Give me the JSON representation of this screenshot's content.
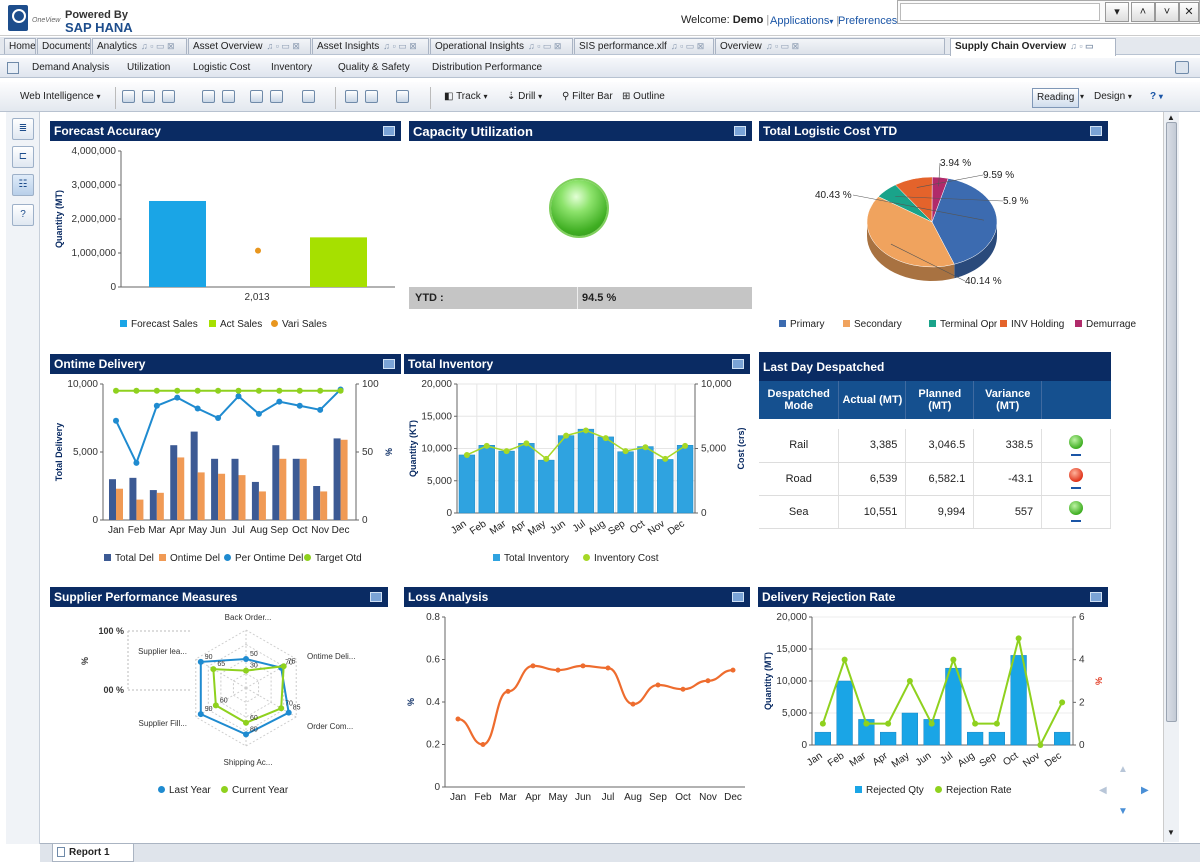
{
  "branding": {
    "powered": "Powered By",
    "product": "SAP HANA",
    "oneview": "OneView"
  },
  "header": {
    "welcome_prefix": "Welcome:",
    "user": "Demo",
    "applications": "Applications",
    "preferences": "Preferences"
  },
  "tabs": [
    {
      "label": "Home"
    },
    {
      "label": "Documents"
    },
    {
      "label": "Analytics"
    },
    {
      "label": "Asset Overview"
    },
    {
      "label": "Asset Insights"
    },
    {
      "label": "Operational Insights"
    },
    {
      "label": "SIS performance.xlf"
    },
    {
      "label": "Overview"
    },
    {
      "label": "Supply Chain Overview"
    }
  ],
  "subtabs": [
    "Demand Analysis",
    "Utilization",
    "Logistic Cost",
    "Inventory",
    "Quality & Safety",
    "Distribution Performance"
  ],
  "toolbar": {
    "web_intelligence": "Web Intelligence",
    "track": "Track",
    "drill": "Drill",
    "filter_bar": "Filter Bar",
    "outline": "Outline",
    "reading": "Reading",
    "design": "Design",
    "help": "?"
  },
  "report_tab": "Report 1",
  "panels": {
    "forecast": "Forecast Accuracy",
    "capacity": "Capacity Utilization",
    "logistic": "Total Logistic Cost YTD",
    "ontime": "Ontime Delivery",
    "inventory": "Total Inventory",
    "despatched": "Last Day Despatched",
    "supplier": "Supplier Performance Measures",
    "loss": "Loss Analysis",
    "rejection": "Delivery Rejection Rate"
  },
  "capacity": {
    "ytd_label": "YTD :",
    "ytd_value": "94.5 %",
    "status_color": "#4fc12b"
  },
  "despatched": {
    "headers": [
      "Despatched Mode",
      "Actual (MT)",
      "Planned (MT)",
      "Variance (MT)"
    ],
    "rows": [
      {
        "mode": "Rail",
        "actual": "3,385",
        "planned": "3,046.5",
        "variance": "338.5",
        "status": "green"
      },
      {
        "mode": "Road",
        "actual": "6,539",
        "planned": "6,582.1",
        "variance": "-43.1",
        "status": "red"
      },
      {
        "mode": "Sea",
        "actual": "10,551",
        "planned": "9,994",
        "variance": "557",
        "status": "green"
      }
    ]
  },
  "chart_data": [
    {
      "id": "forecast",
      "type": "bar",
      "title": "Forecast Accuracy",
      "ylabel": "Quantity (MT)",
      "categories": [
        "2,013"
      ],
      "ylim": [
        0,
        4000000
      ],
      "yticks": [
        "4,000,000",
        "3,000,000",
        "2,000,000",
        "1,000,000",
        "0"
      ],
      "series": [
        {
          "name": "Forecast Sales",
          "values": [
            2530000
          ],
          "color": "#1aa5e6"
        },
        {
          "name": "Act Sales",
          "values": [
            1460000
          ],
          "color": "#a6e000"
        },
        {
          "name": "Vari Sales",
          "values": [
            1070000
          ],
          "color": "#e8961e"
        }
      ]
    },
    {
      "id": "logistic",
      "type": "pie",
      "title": "Total Logistic Cost YTD",
      "slices": [
        {
          "name": "Primary",
          "value": 40.43,
          "label": "40.43 %",
          "color": "#3c6bb0"
        },
        {
          "name": "Secondary",
          "value": 40.14,
          "label": "40.14 %",
          "color": "#f0a35e"
        },
        {
          "name": "Terminal Opr",
          "value": 5.9,
          "label": "5.9 %",
          "color": "#1aa38a"
        },
        {
          "name": "INV Holding",
          "value": 9.59,
          "label": "9.59 %",
          "color": "#e4632b"
        },
        {
          "name": "Demurrage",
          "value": 3.94,
          "label": "3.94 %",
          "color": "#b02a6a"
        }
      ]
    },
    {
      "id": "ontime",
      "type": "bar",
      "title": "Ontime Delivery",
      "ylabel": "Total Delivery",
      "y2label": "%",
      "categories": [
        "Jan",
        "Feb",
        "Mar",
        "Apr",
        "May",
        "Jun",
        "Jul",
        "Aug",
        "Sep",
        "Oct",
        "Nov",
        "Dec"
      ],
      "ylim": [
        0,
        10000
      ],
      "y2lim": [
        0,
        100
      ],
      "yticks": [
        "10,000",
        "5,000",
        "0"
      ],
      "y2ticks": [
        "100",
        "50",
        "0"
      ],
      "series": [
        {
          "name": "Total Del",
          "values": [
            3000,
            3100,
            2200,
            5500,
            6500,
            4500,
            4500,
            2800,
            5500,
            4500,
            2500,
            6000
          ],
          "color": "#3c5a94"
        },
        {
          "name": "Ontime Del",
          "values": [
            2300,
            1500,
            2000,
            4600,
            3500,
            3400,
            3300,
            2100,
            4500,
            4500,
            2100,
            5900
          ],
          "color": "#f09a55"
        },
        {
          "name": "Per Ontime Del",
          "values": [
            73,
            42,
            84,
            90,
            82,
            75,
            91,
            78,
            87,
            84,
            81,
            96
          ],
          "color": "#1f8bd0"
        },
        {
          "name": "Target Otd",
          "values": [
            95,
            95,
            95,
            95,
            95,
            95,
            95,
            95,
            95,
            95,
            95,
            95
          ],
          "color": "#8fd11e"
        }
      ]
    },
    {
      "id": "inventory",
      "type": "bar",
      "title": "Total Inventory",
      "ylabel": "Quantity (KT)",
      "y2label": "Cost (crs)",
      "categories": [
        "Jan",
        "Feb",
        "Mar",
        "Apr",
        "May",
        "Jun",
        "Jul",
        "Aug",
        "Sep",
        "Oct",
        "Nov",
        "Dec"
      ],
      "ylim": [
        0,
        20000
      ],
      "y2lim": [
        0,
        10000
      ],
      "yticks": [
        "20,000",
        "15,000",
        "10,000",
        "5,000",
        "0"
      ],
      "y2ticks": [
        "10,000",
        "5,000",
        "0"
      ],
      "series": [
        {
          "name": "Total Inventory",
          "values": [
            9000,
            10500,
            9600,
            10800,
            8200,
            12000,
            13000,
            11800,
            9500,
            10300,
            8300,
            10500
          ],
          "color": "#2fa3e0"
        },
        {
          "name": "Inventory Cost",
          "values": [
            4500,
            5200,
            4800,
            5400,
            4200,
            6000,
            6400,
            5800,
            4800,
            5100,
            4200,
            5200
          ],
          "color": "#a6d826"
        }
      ]
    },
    {
      "id": "supplier",
      "type": "radar",
      "title": "Supplier Performance Measures",
      "ylabel": "%",
      "axes": [
        "Back Order...",
        "Ontime Deli...",
        "Order Com...",
        "Shipping Ac...",
        "Supplier Fill...",
        "Supplier lea..."
      ],
      "scale_labels": [
        "100 %",
        "00 %"
      ],
      "series": [
        {
          "name": "Last Year",
          "values": [
            50,
            70,
            85,
            80,
            90,
            90
          ],
          "color": "#1f8bd0"
        },
        {
          "name": "Current Year",
          "values": [
            30,
            75,
            70,
            60,
            60,
            65
          ],
          "color": "#8fd11e"
        }
      ]
    },
    {
      "id": "loss",
      "type": "line",
      "title": "Loss Analysis",
      "ylabel": "%",
      "categories": [
        "Jan",
        "Feb",
        "Mar",
        "Apr",
        "May",
        "Jun",
        "Jul",
        "Aug",
        "Sep",
        "Oct",
        "Nov",
        "Dec"
      ],
      "ylim": [
        0,
        0.8
      ],
      "yticks": [
        "0.8",
        "0.6",
        "0.4",
        "0.2",
        "0"
      ],
      "series": [
        {
          "name": "Loss",
          "values": [
            0.32,
            0.2,
            0.45,
            0.57,
            0.55,
            0.57,
            0.56,
            0.39,
            0.48,
            0.46,
            0.5,
            0.55
          ],
          "color": "#ee6c2e"
        }
      ]
    },
    {
      "id": "rejection",
      "type": "bar",
      "title": "Delivery Rejection Rate",
      "ylabel": "Quantity (MT)",
      "y2label": "%",
      "categories": [
        "Jan",
        "Feb",
        "Mar",
        "Apr",
        "May",
        "Jun",
        "Jul",
        "Aug",
        "Sep",
        "Oct",
        "Nov",
        "Dec"
      ],
      "ylim": [
        0,
        20000
      ],
      "y2lim": [
        0,
        6
      ],
      "yticks": [
        "20,000",
        "15,000",
        "10,000",
        "5,000",
        "0"
      ],
      "y2ticks": [
        "6",
        "4",
        "2",
        "0"
      ],
      "series": [
        {
          "name": "Rejected Qty",
          "values": [
            2000,
            10000,
            4000,
            2000,
            5000,
            4000,
            12000,
            2000,
            2000,
            14000,
            0,
            2000
          ],
          "color": "#1aa5e6"
        },
        {
          "name": "Rejection Rate",
          "values": [
            1,
            4,
            1,
            1,
            3,
            1,
            4,
            1,
            1,
            5,
            0,
            2
          ],
          "color": "#8fd11e"
        }
      ]
    }
  ]
}
